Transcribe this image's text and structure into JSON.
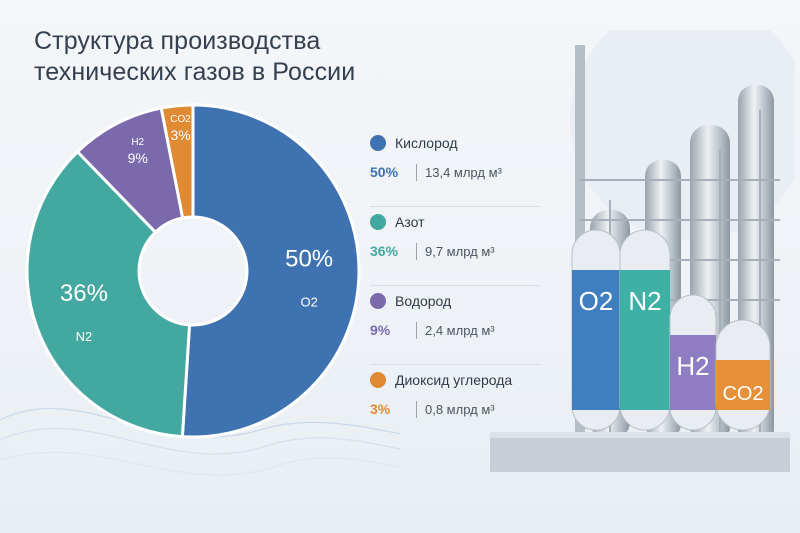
{
  "title": "Структура производства технических газов в России",
  "chart_data": {
    "type": "pie",
    "subtype": "donut",
    "title": "Структура производства технических газов в России",
    "series": [
      {
        "name": "Кислород",
        "percent": 50,
        "value_label": "50%",
        "volume": "13,4 млрд м³",
        "formula": "O2",
        "color": "#3f72b0"
      },
      {
        "name": "Азот",
        "percent": 36,
        "value_label": "36%",
        "volume": "9,7 млрд м³",
        "formula": "N2",
        "color": "#42a8a0"
      },
      {
        "name": "Водород",
        "percent": 9,
        "value_label": "9%",
        "volume": "2,4 млрд м³",
        "formula": "H2",
        "color": "#7a6aab"
      },
      {
        "name": "Диоксид углерода",
        "percent": 3,
        "value_label": "3%",
        "volume": "0,8 млрд м³",
        "formula": "CO2",
        "color": "#e08a33"
      }
    ]
  },
  "illustration": {
    "tanks": [
      {
        "formula": "O2",
        "color": "#3f7fc0"
      },
      {
        "formula": "N2",
        "color": "#3fb0a6"
      },
      {
        "formula": "H2",
        "color": "#8f7dc4"
      },
      {
        "formula": "CO2",
        "color": "#e6913a"
      }
    ]
  }
}
